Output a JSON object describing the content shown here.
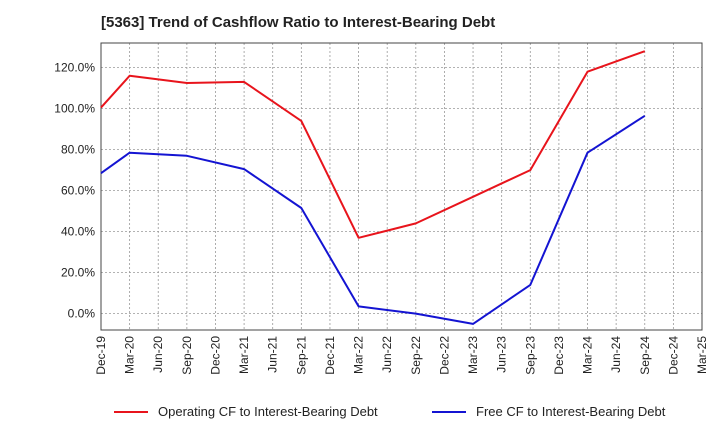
{
  "chart_data": {
    "type": "line",
    "title": "[5363]  Trend of Cashflow Ratio to Interest-Bearing Debt",
    "xlabel": "",
    "ylabel": "",
    "categories": [
      "Dec-19",
      "Mar-20",
      "Jun-20",
      "Sep-20",
      "Dec-20",
      "Mar-21",
      "Jun-21",
      "Sep-21",
      "Dec-21",
      "Mar-22",
      "Jun-22",
      "Sep-22",
      "Dec-22",
      "Mar-23",
      "Jun-23",
      "Sep-23",
      "Dec-23",
      "Mar-24",
      "Jun-24",
      "Sep-24",
      "Dec-24",
      "Mar-25"
    ],
    "y_tick_labels": [
      "0.0%",
      "20.0%",
      "40.0%",
      "60.0%",
      "80.0%",
      "100.0%",
      "120.0%"
    ],
    "ylim": [
      -8,
      132
    ],
    "grid": true,
    "legend_position": "bottom",
    "series": [
      {
        "name": "Operating CF to Interest-Bearing Debt",
        "color": "#e8141c",
        "values": [
          100.5,
          116,
          null,
          112.5,
          null,
          113,
          null,
          94,
          null,
          37,
          null,
          44,
          null,
          57,
          null,
          70,
          null,
          118,
          null,
          128,
          null,
          null
        ]
      },
      {
        "name": "Free CF to Interest-Bearing Debt",
        "color": "#1414d2",
        "values": [
          68.5,
          78.5,
          null,
          77,
          null,
          70.5,
          null,
          51.5,
          null,
          3.5,
          null,
          0,
          null,
          -5,
          null,
          14,
          null,
          78.5,
          null,
          96.5,
          null,
          null
        ]
      }
    ]
  }
}
